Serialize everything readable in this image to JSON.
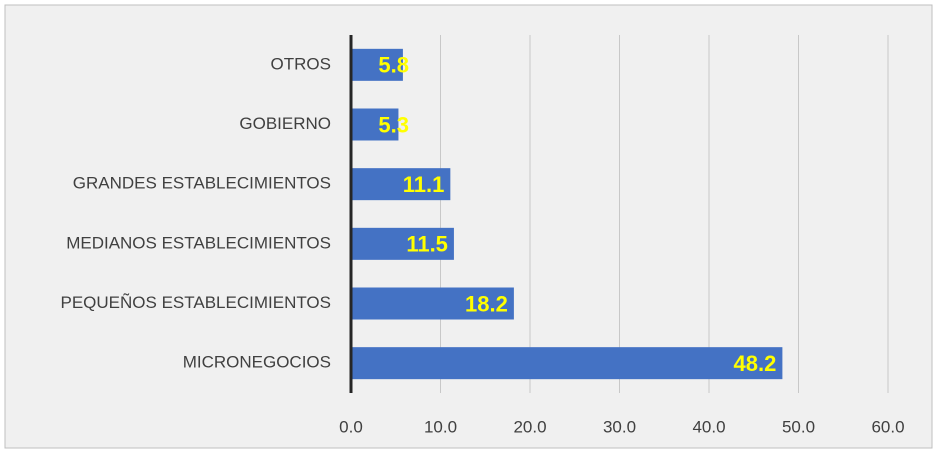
{
  "chart_data": {
    "type": "barh",
    "categories": [
      "OTROS",
      "GOBIERNO",
      "GRANDES ESTABLECIMIENTOS",
      "MEDIANOS ESTABLECIMIENTOS",
      "PEQUEÑOS ESTABLECIMIENTOS",
      "MICRONEGOCIOS"
    ],
    "values": [
      5.8,
      5.3,
      11.1,
      11.5,
      18.2,
      48.2
    ],
    "color": "#4472c4",
    "label_color": "#ffff00",
    "xlim": [
      0,
      60
    ],
    "xticks": [
      {
        "value": 0,
        "label": "0.0"
      },
      {
        "value": 10,
        "label": "10.0"
      },
      {
        "value": 20,
        "label": "20.0"
      },
      {
        "value": 30,
        "label": "30.0"
      },
      {
        "value": 40,
        "label": "40.0"
      },
      {
        "value": 50,
        "label": "50.0"
      },
      {
        "value": 60,
        "label": "60.0"
      }
    ],
    "grid": true
  }
}
